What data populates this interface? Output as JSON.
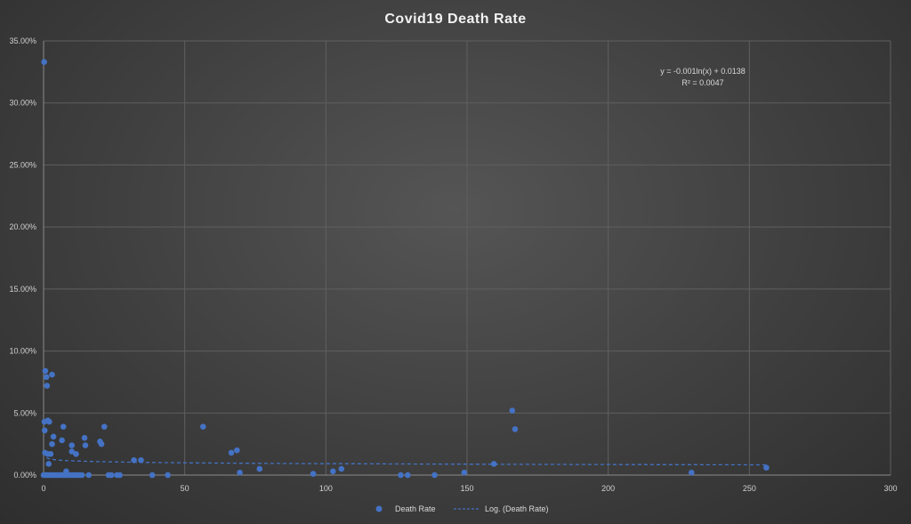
{
  "chart_data": {
    "type": "scatter",
    "title": "Covid19  Death Rate",
    "xlim": [
      0,
      300
    ],
    "ylim": [
      0,
      0.35
    ],
    "x_ticks": [
      "0",
      "50",
      "100",
      "150",
      "200",
      "250",
      "300"
    ],
    "y_ticks": [
      "0.00%",
      "5.00%",
      "10.00%",
      "15.00%",
      "20.00%",
      "25.00%",
      "30.00%",
      "35.00%"
    ],
    "grid": true,
    "legend_position": "bottom",
    "series": [
      {
        "name": "Death Rate",
        "color": "#4472c4",
        "points": [
          [
            0.2,
            0.333
          ],
          [
            0.6,
            0.084
          ],
          [
            1.0,
            0.079
          ],
          [
            1.2,
            0.072
          ],
          [
            3.0,
            0.081
          ],
          [
            0.3,
            0.043
          ],
          [
            1.5,
            0.044
          ],
          [
            2.0,
            0.043
          ],
          [
            0.4,
            0.036
          ],
          [
            3.5,
            0.031
          ],
          [
            7.0,
            0.039
          ],
          [
            3.0,
            0.025
          ],
          [
            6.5,
            0.028
          ],
          [
            10.0,
            0.024
          ],
          [
            14.5,
            0.03
          ],
          [
            14.8,
            0.024
          ],
          [
            20.0,
            0.027
          ],
          [
            20.5,
            0.025
          ],
          [
            21.5,
            0.039
          ],
          [
            0.5,
            0.018
          ],
          [
            1.5,
            0.017
          ],
          [
            2.5,
            0.017
          ],
          [
            1.8,
            0.009
          ],
          [
            10.0,
            0.019
          ],
          [
            11.5,
            0.017
          ],
          [
            8.0,
            0.003
          ],
          [
            32.0,
            0.012
          ],
          [
            34.5,
            0.012
          ],
          [
            56.5,
            0.039
          ],
          [
            66.5,
            0.018
          ],
          [
            68.5,
            0.02
          ],
          [
            69.5,
            0.002
          ],
          [
            76.5,
            0.005
          ],
          [
            95.5,
            0.001
          ],
          [
            102.5,
            0.003
          ],
          [
            105.5,
            0.005
          ],
          [
            126.5,
            0.0
          ],
          [
            129.0,
            0.0
          ],
          [
            138.5,
            0.0
          ],
          [
            149.0,
            0.002
          ],
          [
            159.5,
            0.009
          ],
          [
            166.0,
            0.052
          ],
          [
            167.0,
            0.037
          ],
          [
            229.5,
            0.002
          ],
          [
            256.0,
            0.006
          ],
          [
            0.0,
            0.0
          ],
          [
            0.8,
            0.0
          ],
          [
            1.6,
            0.0
          ],
          [
            2.4,
            0.0
          ],
          [
            3.2,
            0.0
          ],
          [
            4.0,
            0.0
          ],
          [
            4.8,
            0.0
          ],
          [
            5.6,
            0.0
          ],
          [
            6.4,
            0.0
          ],
          [
            7.2,
            0.0
          ],
          [
            8.0,
            0.0
          ],
          [
            8.8,
            0.0
          ],
          [
            9.6,
            0.0
          ],
          [
            10.4,
            0.0
          ],
          [
            11.2,
            0.0
          ],
          [
            12.0,
            0.0
          ],
          [
            12.8,
            0.0
          ],
          [
            13.6,
            0.0
          ],
          [
            16.0,
            0.0
          ],
          [
            23.0,
            0.0
          ],
          [
            24.0,
            0.0
          ],
          [
            26.0,
            0.0
          ],
          [
            27.0,
            0.0
          ],
          [
            38.5,
            0.0
          ],
          [
            44.0,
            0.0
          ]
        ]
      },
      {
        "name": "Log. (Death Rate)",
        "color": "#4472c4",
        "trendline": "logarithmic",
        "coef_a": -0.001,
        "coef_b": 0.0138
      }
    ],
    "annotations": {
      "equation": "y = -0.001ln(x) + 0.0138",
      "r_squared": "R² = 0.0047"
    }
  }
}
